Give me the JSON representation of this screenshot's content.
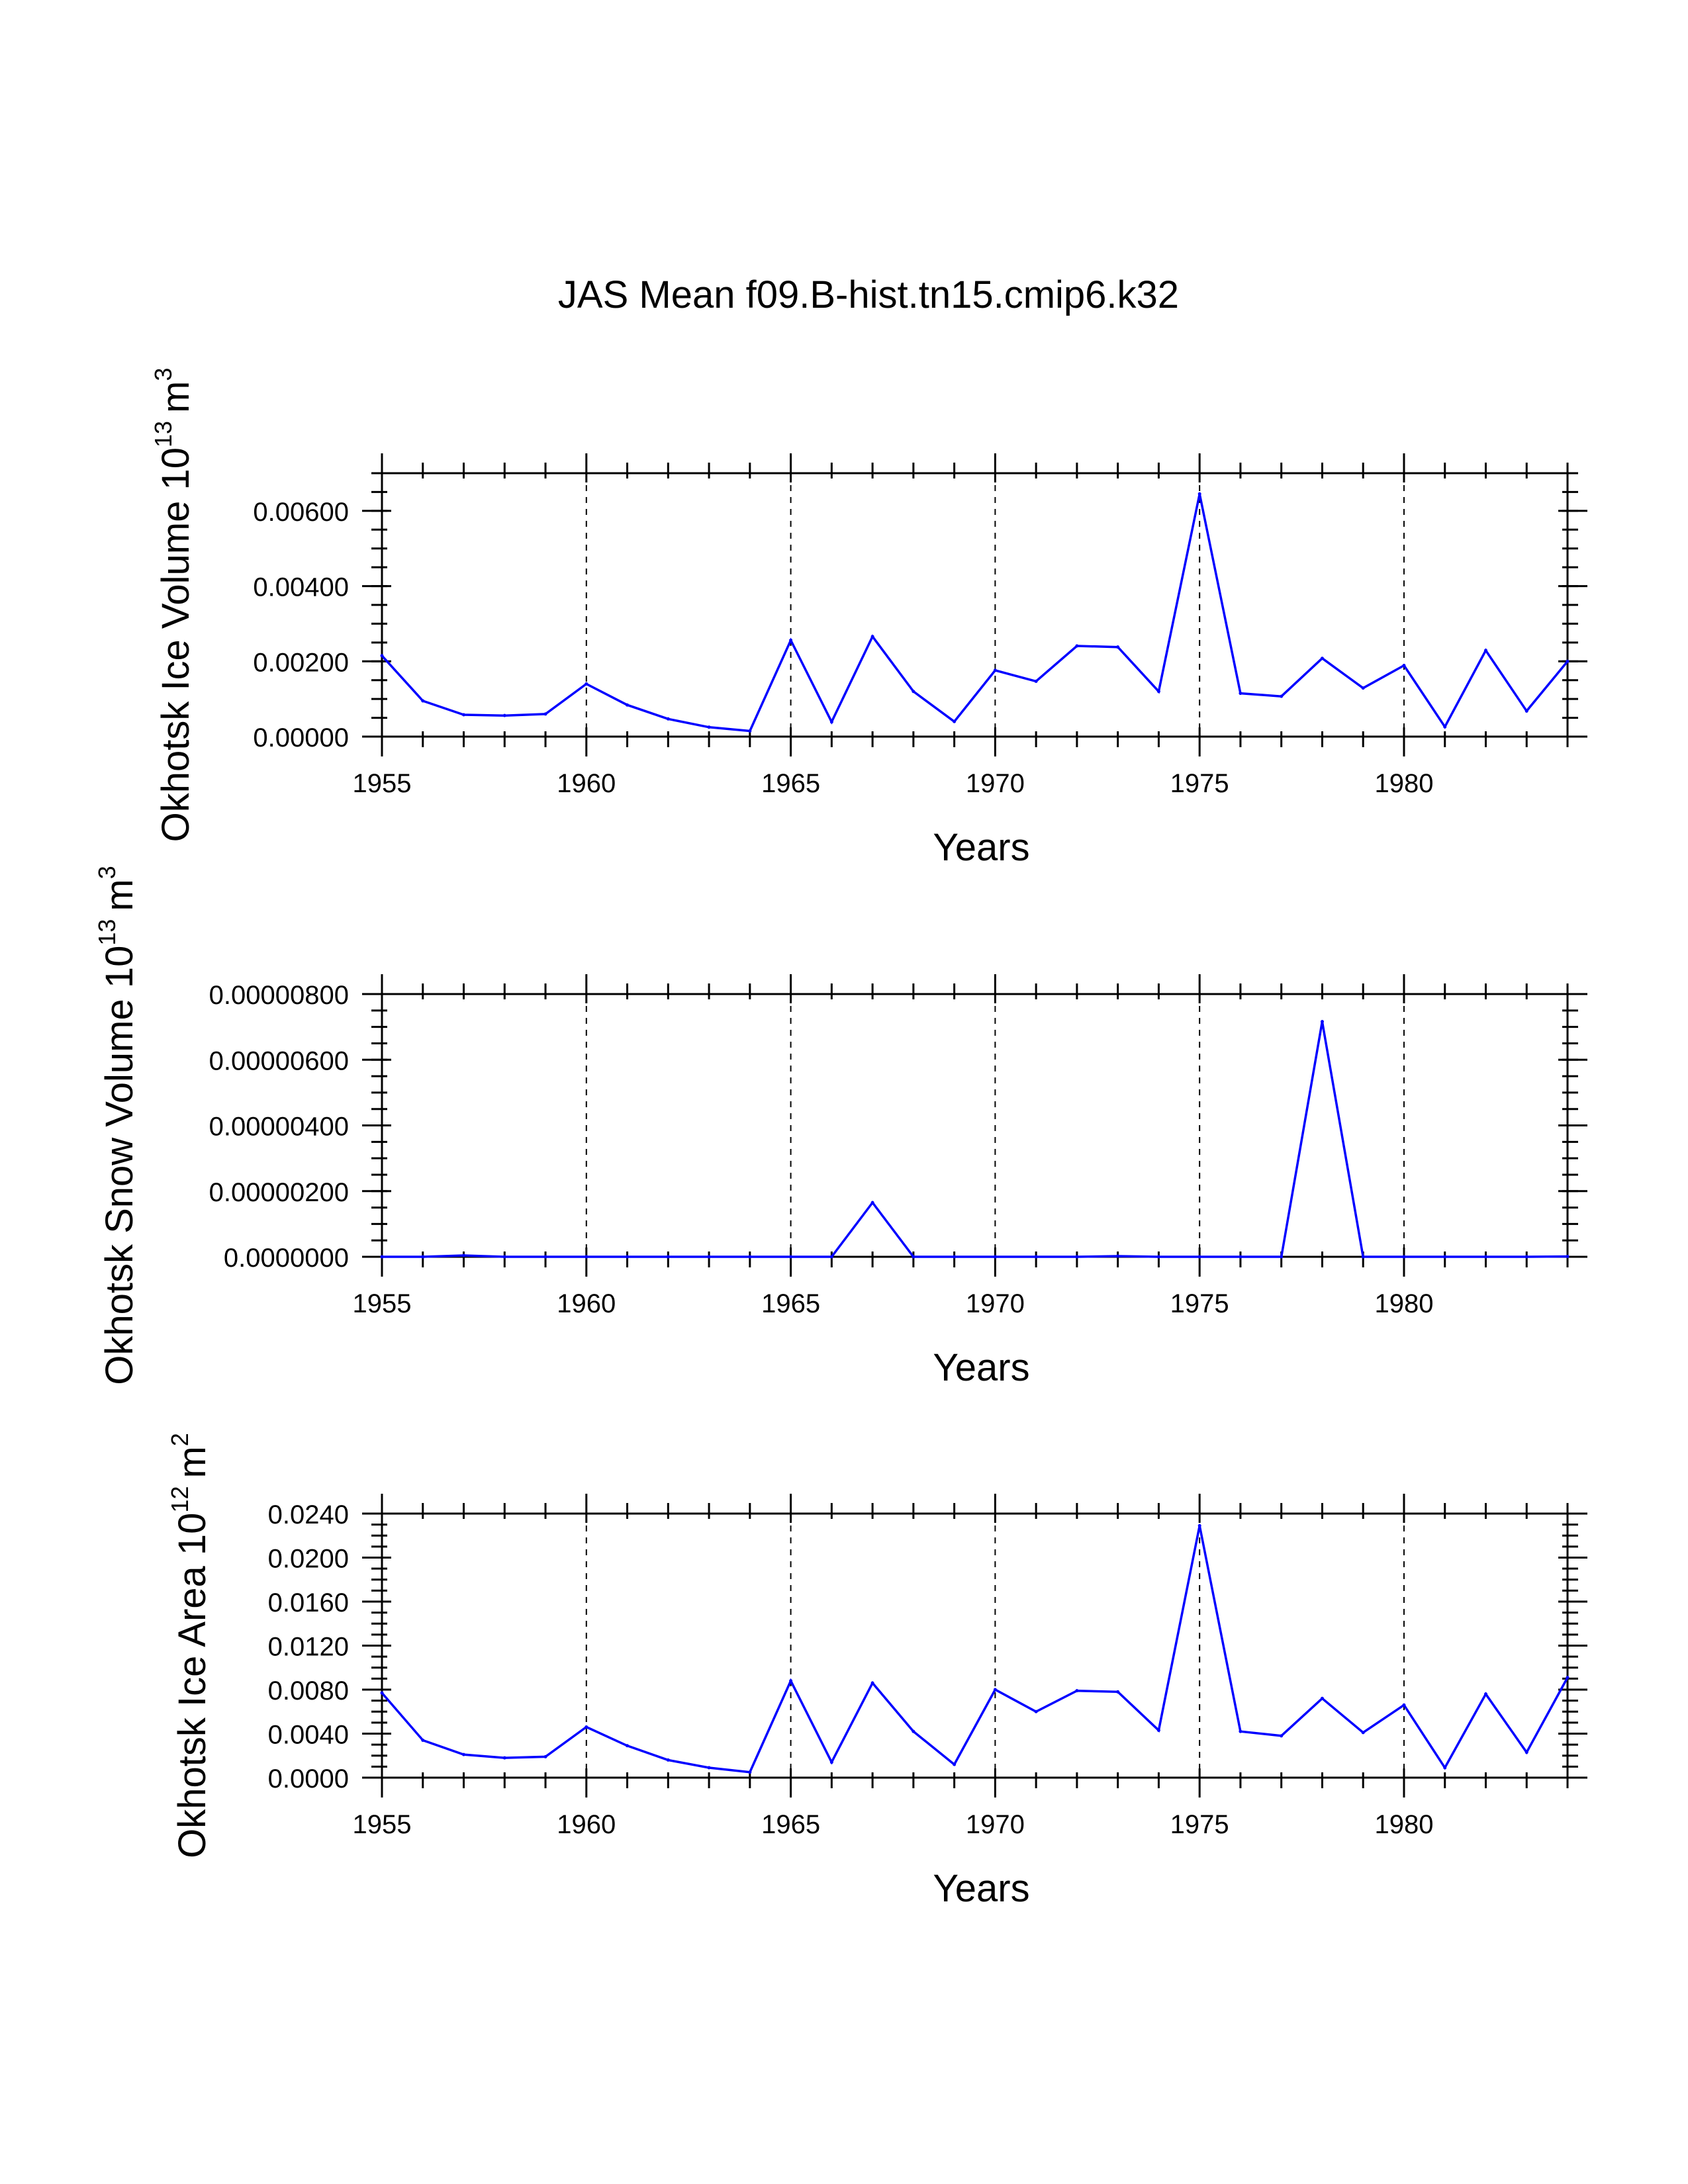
{
  "chart_data": [
    {
      "type": "line",
      "title": "JAS Mean f09.B-hist.tn15.cmip6.k32",
      "ylabel": "Okhotsk Ice Volume 10",
      "ylabel_exp": "13",
      "ylabel_unit": "m",
      "ylabel_unit_exp": "3",
      "xlabel": "Years",
      "x": [
        1955,
        1956,
        1957,
        1958,
        1959,
        1960,
        1961,
        1962,
        1963,
        1964,
        1965,
        1966,
        1967,
        1968,
        1969,
        1970,
        1971,
        1972,
        1973,
        1974,
        1975,
        1976,
        1977,
        1978,
        1979,
        1980,
        1981,
        1982,
        1983,
        1984
      ],
      "values": [
        0.00215,
        0.00095,
        0.00058,
        0.00056,
        0.0006,
        0.0014,
        0.00084,
        0.00047,
        0.00025,
        0.00015,
        0.00256,
        0.00039,
        0.00266,
        0.0012,
        0.0004,
        0.00176,
        0.00147,
        0.00241,
        0.00238,
        0.0012,
        0.00645,
        0.00115,
        0.00107,
        0.00208,
        0.00129,
        0.00189,
        0.00026,
        0.00229,
        0.00068,
        0.002
      ],
      "xlim": [
        1955,
        1984
      ],
      "ylim": [
        0,
        0.007
      ],
      "x_ticks": [
        "1955",
        "1960",
        "1965",
        "1970",
        "1975",
        "1980"
      ],
      "y_ticks": [
        "0.00000",
        "0.00200",
        "0.00400",
        "0.00600"
      ],
      "y_tick_values": [
        0,
        0.002,
        0.004,
        0.006
      ],
      "vlines": [
        1960,
        1965,
        1970,
        1975,
        1980
      ],
      "line_color": "#0000ff"
    },
    {
      "type": "line",
      "ylabel": "Okhotsk Snow Volume 10",
      "ylabel_exp": "13",
      "ylabel_unit": "m",
      "ylabel_unit_exp": "3",
      "xlabel": "Years",
      "x": [
        1955,
        1956,
        1957,
        1958,
        1959,
        1960,
        1961,
        1962,
        1963,
        1964,
        1965,
        1966,
        1967,
        1968,
        1969,
        1970,
        1971,
        1972,
        1973,
        1974,
        1975,
        1976,
        1977,
        1978,
        1979,
        1980,
        1981,
        1982,
        1983,
        1984
      ],
      "values": [
        0,
        0,
        4e-08,
        0,
        0,
        0,
        0,
        0,
        0,
        0,
        0,
        0,
        1.65e-06,
        0,
        0,
        0,
        0,
        0,
        2e-08,
        0,
        0,
        0,
        0,
        7.16e-06,
        0,
        0,
        0,
        0,
        0,
        1e-08
      ],
      "xlim": [
        1955,
        1984
      ],
      "ylim": [
        0,
        8e-06
      ],
      "x_ticks": [
        "1955",
        "1960",
        "1965",
        "1970",
        "1975",
        "1980"
      ],
      "y_ticks": [
        "0.0000000",
        "0.00000200",
        "0.00000400",
        "0.00000600",
        "0.00000800"
      ],
      "y_tick_values": [
        0,
        2e-06,
        4e-06,
        6e-06,
        8e-06
      ],
      "vlines": [
        1960,
        1965,
        1970,
        1975,
        1980
      ],
      "line_color": "#0000ff"
    },
    {
      "type": "line",
      "ylabel": "Okhotsk Ice Area 10",
      "ylabel_exp": "12",
      "ylabel_unit": "m",
      "ylabel_unit_exp": "2",
      "xlabel": "Years",
      "x": [
        1955,
        1956,
        1957,
        1958,
        1959,
        1960,
        1961,
        1962,
        1963,
        1964,
        1965,
        1966,
        1967,
        1968,
        1969,
        1970,
        1971,
        1972,
        1973,
        1974,
        1975,
        1976,
        1977,
        1978,
        1979,
        1980,
        1981,
        1982,
        1983,
        1984
      ],
      "values": [
        0.0077,
        0.0034,
        0.0021,
        0.0018,
        0.0019,
        0.0046,
        0.0029,
        0.0016,
        0.0009,
        0.0005,
        0.0088,
        0.0014,
        0.0086,
        0.0042,
        0.0012,
        0.008,
        0.006,
        0.0079,
        0.0078,
        0.0043,
        0.0229,
        0.0042,
        0.0038,
        0.0072,
        0.0041,
        0.0066,
        0.0009,
        0.0076,
        0.0023,
        0.0091
      ],
      "xlim": [
        1955,
        1984
      ],
      "ylim": [
        0,
        0.024
      ],
      "x_ticks": [
        "1955",
        "1960",
        "1965",
        "1970",
        "1975",
        "1980"
      ],
      "y_ticks": [
        "0.0000",
        "0.0040",
        "0.0080",
        "0.0120",
        "0.0160",
        "0.0200",
        "0.0240"
      ],
      "y_tick_values": [
        0,
        0.004,
        0.008,
        0.012,
        0.016,
        0.02,
        0.024
      ],
      "vlines": [
        1960,
        1965,
        1970,
        1975,
        1980
      ],
      "line_color": "#0000ff"
    }
  ]
}
